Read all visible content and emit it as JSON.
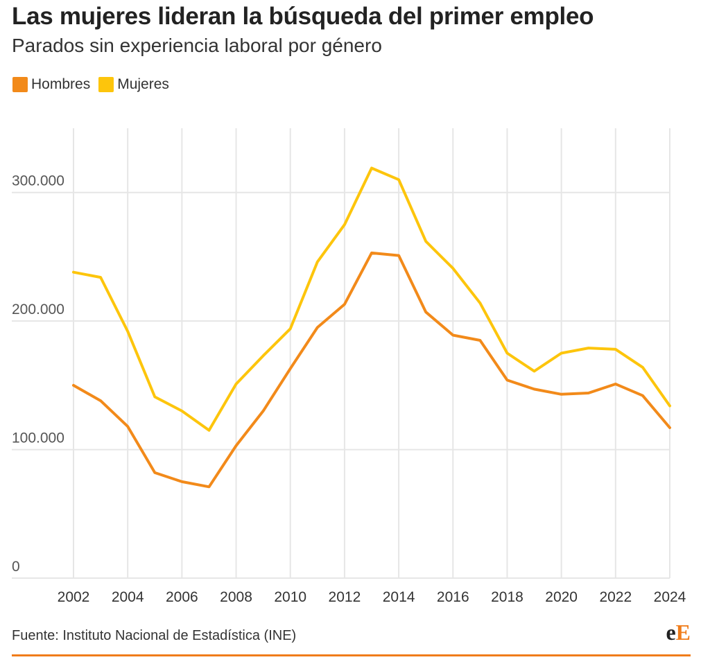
{
  "header": {
    "title": "Las mujeres lideran la búsqueda del primer empleo",
    "subtitle": "Parados sin experiencia laboral por género"
  },
  "legend": [
    {
      "label": "Hombres",
      "color": "#f28a1a"
    },
    {
      "label": "Mujeres",
      "color": "#fdc50c"
    }
  ],
  "chart_data": {
    "type": "line",
    "x": [
      2002,
      2003,
      2004,
      2005,
      2006,
      2007,
      2008,
      2009,
      2010,
      2011,
      2012,
      2013,
      2014,
      2015,
      2016,
      2017,
      2018,
      2019,
      2020,
      2021,
      2022,
      2023,
      2024
    ],
    "series": [
      {
        "name": "Hombres",
        "color": "#f28a1a",
        "values": [
          150000,
          138000,
          118000,
          82000,
          75000,
          71000,
          103000,
          130000,
          163000,
          195000,
          213000,
          253000,
          251000,
          207000,
          189000,
          185000,
          154000,
          147000,
          143000,
          144000,
          151000,
          142000,
          117000
        ]
      },
      {
        "name": "Mujeres",
        "color": "#fdc50c",
        "values": [
          238000,
          234000,
          192000,
          141000,
          130000,
          115000,
          151000,
          173000,
          194000,
          246000,
          275000,
          319000,
          310000,
          262000,
          241000,
          214000,
          175000,
          161000,
          175000,
          179000,
          178000,
          164000,
          134000
        ]
      }
    ],
    "x_ticks": [
      2002,
      2004,
      2006,
      2008,
      2010,
      2012,
      2014,
      2016,
      2018,
      2020,
      2022,
      2024
    ],
    "y_ticks": [
      0,
      100000,
      200000,
      300000
    ],
    "y_tick_labels": [
      "0",
      "100.000",
      "200.000",
      "300.000"
    ],
    "xlim": [
      2002,
      2024
    ],
    "ylim": [
      0,
      350000
    ],
    "grid": true,
    "legend_position": "top-left"
  },
  "footer": {
    "source": "Fuente: Instituto Nacional de Estadística (INE)",
    "logo_first": "e",
    "logo_second": "E",
    "rule_color": "#f07c1a"
  }
}
